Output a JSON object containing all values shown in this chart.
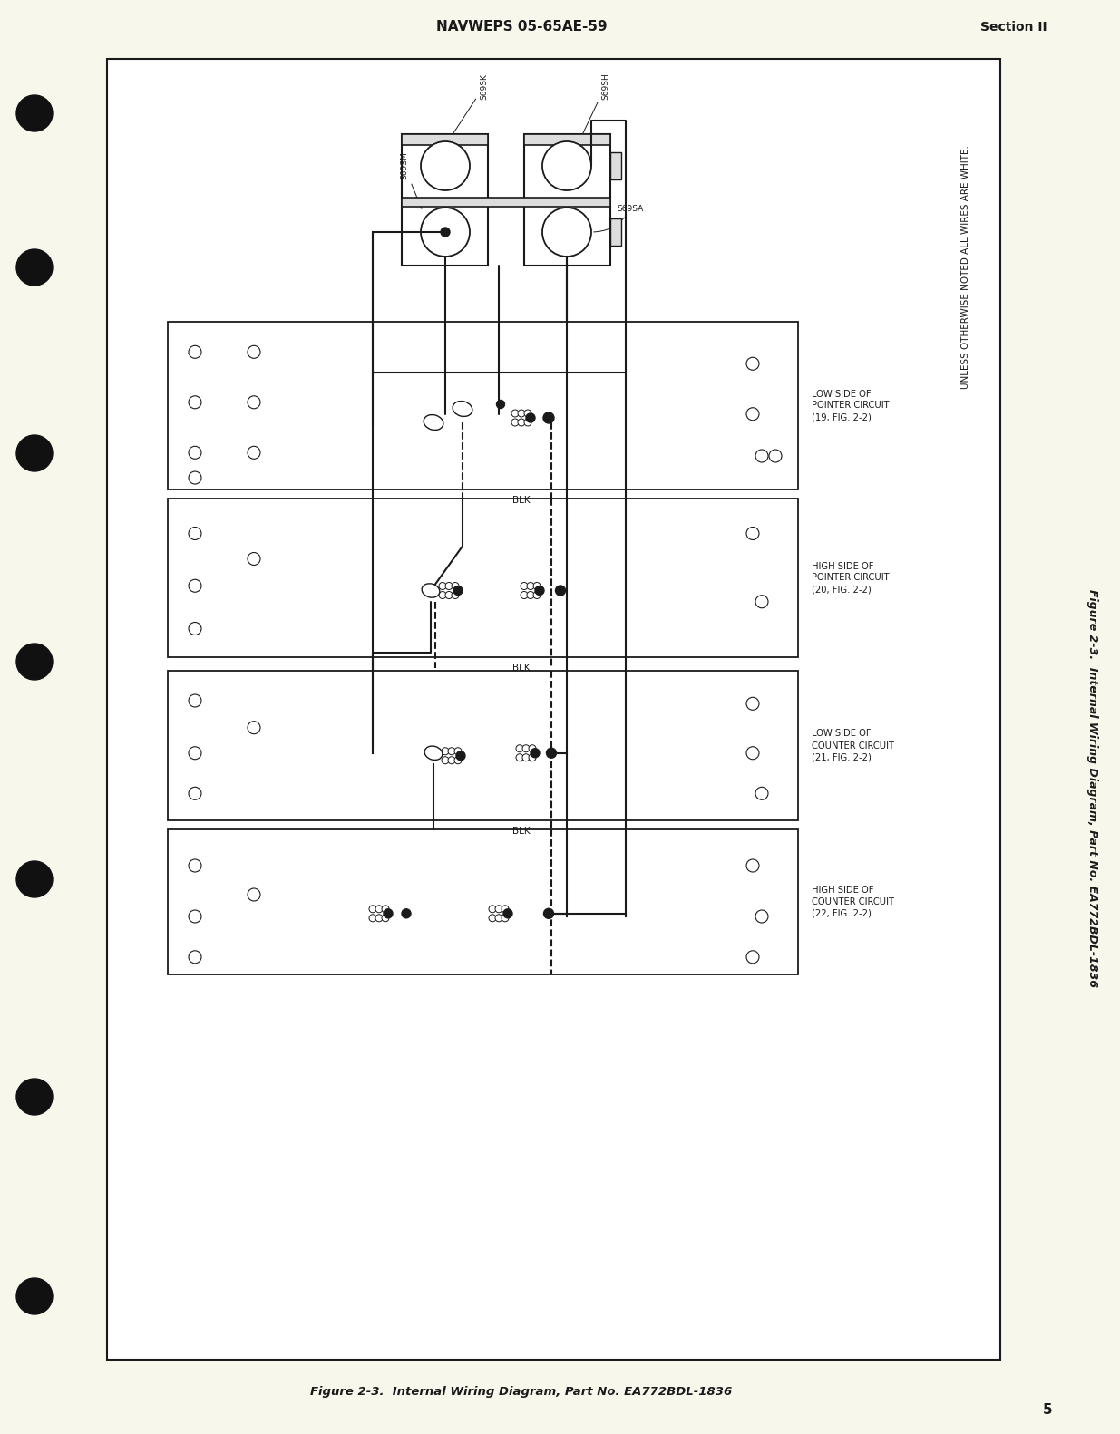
{
  "bg_color": "#F8F7EC",
  "page_bg": "#F8F7EC",
  "header_text": "NAVWEPS 05-65AE-59",
  "header_right": "Section II",
  "page_number": "5",
  "footer_caption": "Figure 2-3.  Internal Wiring Diagram, Part No. EA772BDL-1836",
  "note_text": "UNLESS OTHERWISE NOTED ALL WIRES ARE WHITE.",
  "panel_labels": [
    "LOW SIDE OF\nPOINTER CIRCUIT\n(19, FIG. 2-2)",
    "HIGH SIDE OF\nPOINTER CIRCUIT\n(20, FIG. 2-2)",
    "LOW SIDE OF\nCOUNTER CIRCUIT\n(21, FIG. 2-2)",
    "HIGH SIDE OF\nCOUNTER CIRCUIT\n(22, FIG. 2-2)"
  ],
  "figsize": [
    12.35,
    15.82
  ],
  "dpi": 100
}
